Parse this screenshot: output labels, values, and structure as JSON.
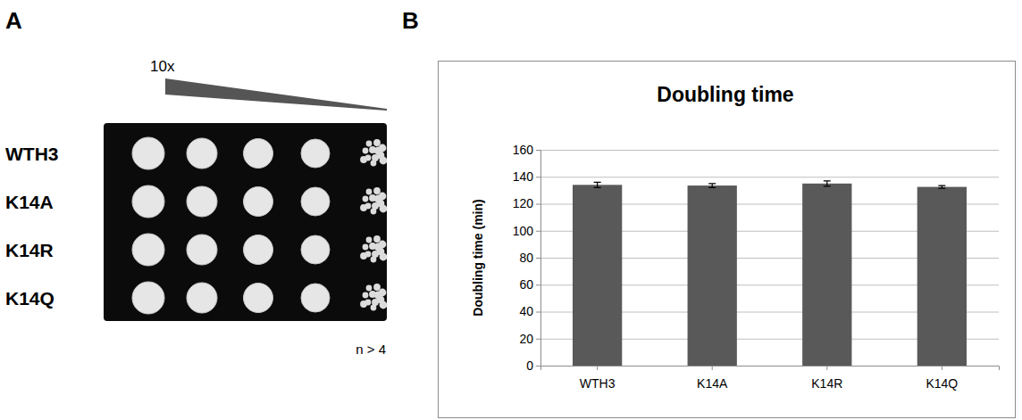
{
  "panel_letters": [
    "A",
    "B"
  ],
  "spot_assay": {
    "dilution_label": "10x",
    "strains": [
      "WTH3",
      "K14A",
      "K14R",
      "K14Q"
    ],
    "replicates_label": "n > 4"
  },
  "chart_data": {
    "type": "bar",
    "title": "Doubling time",
    "y_label": "Doubling time (min)",
    "categories": [
      "WTH3",
      "K14A",
      "K14R",
      "K14Q"
    ],
    "values": [
      134,
      133.5,
      135,
      132.5
    ],
    "errors": [
      2,
      1.5,
      2,
      1
    ],
    "color": "#595959",
    "ylim": [
      0,
      160
    ],
    "yticks": [
      0,
      20,
      40,
      60,
      80,
      100,
      120,
      140,
      160
    ],
    "grid": true
  }
}
